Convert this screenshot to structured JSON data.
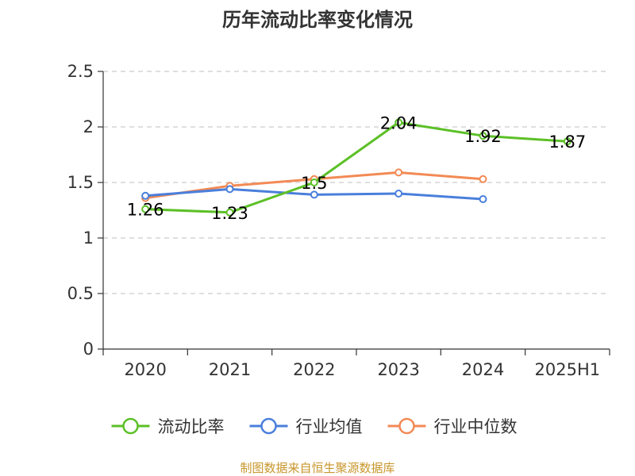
{
  "chart_data": {
    "type": "line",
    "title": "历年流动比率变化情况",
    "categories": [
      "2020",
      "2021",
      "2022",
      "2023",
      "2024",
      "2025H1"
    ],
    "ylim": [
      0,
      2.5
    ],
    "yticks": [
      "0",
      "0.5",
      "1",
      "1.5",
      "2",
      "2.5"
    ],
    "grid": true,
    "legend_position": "bottom",
    "series": [
      {
        "name": "流动比率",
        "color": "#5cc027",
        "values": [
          1.26,
          1.23,
          1.5,
          2.04,
          1.92,
          1.87
        ],
        "labels": [
          "1.26",
          "1.23",
          "1.5",
          "2.04",
          "1.92",
          "1.87"
        ]
      },
      {
        "name": "行业均值",
        "color": "#4a7fdb",
        "values": [
          1.38,
          1.44,
          1.39,
          1.4,
          1.35,
          null
        ]
      },
      {
        "name": "行业中位数",
        "color": "#f28a55",
        "values": [
          1.36,
          1.47,
          1.53,
          1.59,
          1.53,
          null
        ]
      }
    ],
    "source": "制图数据来自恒生聚源数据库"
  }
}
